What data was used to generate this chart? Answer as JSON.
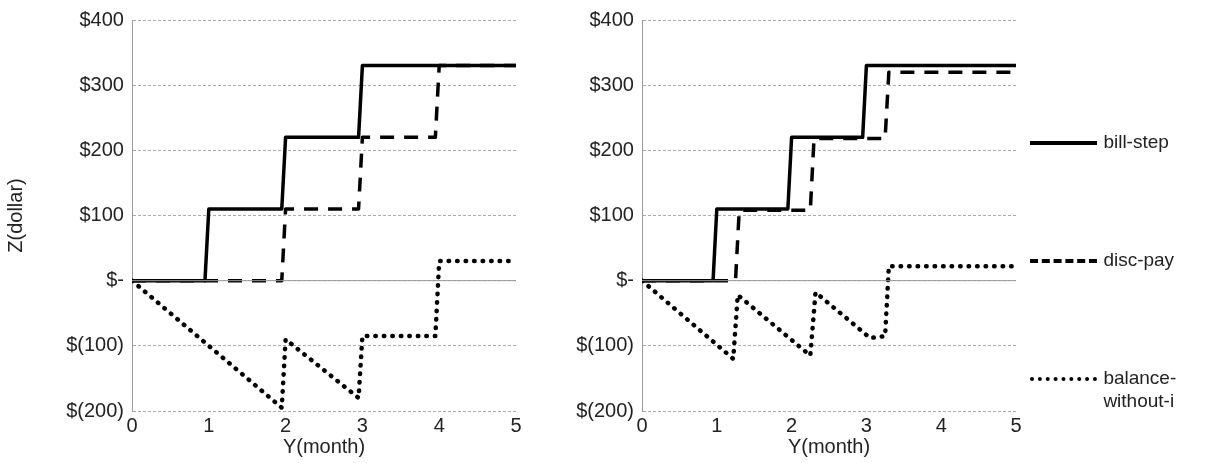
{
  "chart_data": [
    {
      "type": "line",
      "xlabel": "Y(month)",
      "ylabel": "Z(dollar)",
      "xlim": [
        0,
        5
      ],
      "xticks": [
        0,
        1,
        2,
        3,
        4,
        5
      ],
      "ylim": [
        -200,
        400
      ],
      "yticks": [
        {
          "value": -200,
          "label": "$(200)"
        },
        {
          "value": -100,
          "label": "$(100)"
        },
        {
          "value": 0,
          "label": "$-"
        },
        {
          "value": 100,
          "label": "$100"
        },
        {
          "value": 200,
          "label": "$200"
        },
        {
          "value": 300,
          "label": "$300"
        },
        {
          "value": 400,
          "label": "$400"
        }
      ],
      "grid": "y",
      "legend": false,
      "marker": "none",
      "ref_lines": [
        {
          "axis": "y",
          "value": 0,
          "color": "#999999"
        }
      ],
      "series": [
        {
          "color": "#000000",
          "line_style": "solid",
          "x": [
            0,
            0.95,
            1,
            1.95,
            2,
            2.95,
            3,
            5
          ],
          "values": [
            0,
            0,
            110,
            110,
            220,
            220,
            330,
            330
          ]
        },
        {
          "color": "#000000",
          "line_style": "dashed",
          "x": [
            0,
            1.95,
            2,
            2.95,
            3,
            3.95,
            4,
            5
          ],
          "values": [
            0,
            0,
            110,
            110,
            220,
            220,
            330,
            330
          ]
        },
        {
          "color": "#000000",
          "line_style": "dotted",
          "x": [
            0,
            1,
            1.95,
            2,
            2.95,
            3,
            3.95,
            4,
            5
          ],
          "values": [
            0,
            -100,
            -195,
            -90,
            -180,
            -85,
            -85,
            30,
            30
          ]
        }
      ]
    },
    {
      "type": "line",
      "xlabel": "Y(month)",
      "xlim": [
        0,
        5
      ],
      "xticks": [
        0,
        1,
        2,
        3,
        4,
        5
      ],
      "ylim": [
        -200,
        400
      ],
      "yticks": [
        {
          "value": -200,
          "label": "$(200)"
        },
        {
          "value": -100,
          "label": "$(100)"
        },
        {
          "value": 0,
          "label": "$-"
        },
        {
          "value": 100,
          "label": "$100"
        },
        {
          "value": 200,
          "label": "$200"
        },
        {
          "value": 300,
          "label": "$300"
        },
        {
          "value": 400,
          "label": "$400"
        }
      ],
      "grid": "y",
      "legend": "right",
      "marker": "none",
      "ref_lines": [
        {
          "axis": "y",
          "value": 0,
          "color": "#999999"
        }
      ],
      "series": [
        {
          "name": "bill-step",
          "color": "#000000",
          "line_style": "solid",
          "x": [
            0,
            0.95,
            1,
            1.95,
            2,
            2.95,
            3,
            5
          ],
          "values": [
            0,
            0,
            110,
            110,
            220,
            220,
            330,
            330
          ]
        },
        {
          "name": "disc-pay",
          "color": "#000000",
          "line_style": "dashed",
          "x": [
            0,
            1.25,
            1.3,
            2.25,
            2.3,
            3.25,
            3.3,
            5
          ],
          "values": [
            0,
            0,
            108,
            108,
            218,
            218,
            320,
            320
          ]
        },
        {
          "name": "balance-without-i",
          "color": "#000000",
          "line_style": "dotted",
          "x": [
            0,
            1.22,
            1.28,
            2.25,
            2.32,
            3.05,
            3.25,
            3.3,
            5
          ],
          "values": [
            0,
            -120,
            -22,
            -115,
            -18,
            -88,
            -85,
            22,
            22
          ]
        }
      ]
    }
  ]
}
